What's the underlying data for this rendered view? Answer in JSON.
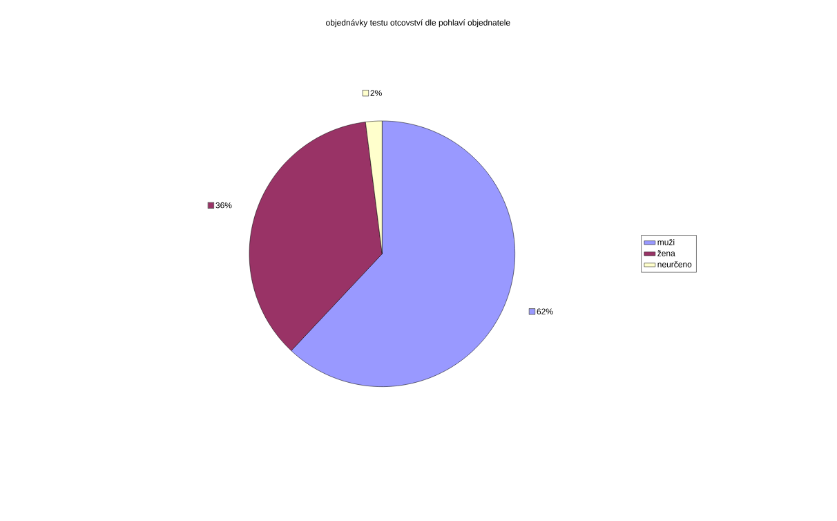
{
  "chart_data": {
    "type": "pie",
    "title": "objednávky testu otcovství dle pohlaví objednatele",
    "categories": [
      "muži",
      "žena",
      "neurčeno"
    ],
    "values": [
      62,
      36,
      2
    ],
    "value_labels": [
      "62%",
      "36%",
      "2%"
    ],
    "colors": [
      "#9999ff",
      "#993366",
      "#ffffcc"
    ],
    "legend": "right"
  }
}
